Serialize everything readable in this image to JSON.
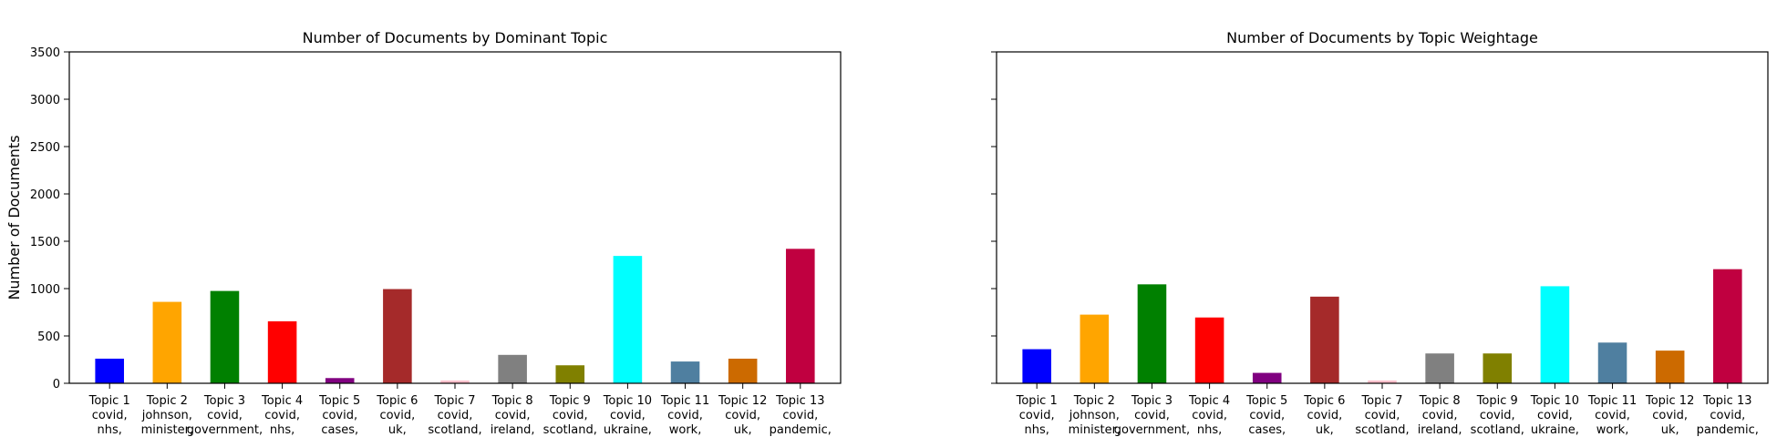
{
  "chart_data": [
    {
      "type": "bar",
      "title": "Number of Documents by Dominant Topic",
      "ylabel": "Number of Documents",
      "xlabel": "",
      "ylim": [
        0,
        3500
      ],
      "yticks": [
        0,
        500,
        1000,
        1500,
        2000,
        2500,
        3000,
        3500
      ],
      "show_ytick_labels": true,
      "categories": [
        [
          "Topic 1",
          "covid,",
          "nhs,"
        ],
        [
          "Topic 2",
          "johnson,",
          "minister,"
        ],
        [
          "Topic 3",
          "covid,",
          "government,"
        ],
        [
          "Topic 4",
          "covid,",
          "nhs,"
        ],
        [
          "Topic 5",
          "covid,",
          "cases,"
        ],
        [
          "Topic 6",
          "covid,",
          "uk,"
        ],
        [
          "Topic 7",
          "covid,",
          "scotland,"
        ],
        [
          "Topic 8",
          "covid,",
          "ireland,"
        ],
        [
          "Topic 9",
          "covid,",
          "scotland,"
        ],
        [
          "Topic 10",
          "covid,",
          "ukraine,"
        ],
        [
          "Topic 11",
          "covid,",
          "work,"
        ],
        [
          "Topic 12",
          "covid,",
          "uk,"
        ],
        [
          "Topic 13",
          "covid,",
          "pandemic,"
        ]
      ],
      "values": [
        260,
        860,
        975,
        655,
        55,
        995,
        30,
        300,
        190,
        1345,
        230,
        260,
        1420
      ],
      "colors": [
        "#0000ff",
        "#ffa500",
        "#008000",
        "#ff0000",
        "#800080",
        "#a52a2a",
        "#ffc0cb",
        "#808080",
        "#808000",
        "#00ffff",
        "#4f7fa0",
        "#cc6a00",
        "#c00040"
      ],
      "grid": false
    },
    {
      "type": "bar",
      "title": "Number of Documents by Topic Weightage",
      "ylabel": "",
      "xlabel": "",
      "ylim": [
        0,
        3500
      ],
      "yticks": [
        0,
        500,
        1000,
        1500,
        2000,
        2500,
        3000,
        3500
      ],
      "show_ytick_labels": false,
      "categories": [
        [
          "Topic 1",
          "covid,",
          "nhs,"
        ],
        [
          "Topic 2",
          "johnson,",
          "minister,"
        ],
        [
          "Topic 3",
          "covid,",
          "government,"
        ],
        [
          "Topic 4",
          "covid,",
          "nhs,"
        ],
        [
          "Topic 5",
          "covid,",
          "cases,"
        ],
        [
          "Topic 6",
          "covid,",
          "uk,"
        ],
        [
          "Topic 7",
          "covid,",
          "scotland,"
        ],
        [
          "Topic 8",
          "covid,",
          "ireland,"
        ],
        [
          "Topic 9",
          "covid,",
          "scotland,"
        ],
        [
          "Topic 10",
          "covid,",
          "ukraine,"
        ],
        [
          "Topic 11",
          "covid,",
          "work,"
        ],
        [
          "Topic 12",
          "covid,",
          "uk,"
        ],
        [
          "Topic 13",
          "covid,",
          "pandemic,"
        ]
      ],
      "values": [
        360,
        725,
        1045,
        695,
        110,
        915,
        30,
        315,
        315,
        1025,
        430,
        345,
        1205
      ],
      "colors": [
        "#0000ff",
        "#ffa500",
        "#008000",
        "#ff0000",
        "#800080",
        "#a52a2a",
        "#ffc0cb",
        "#808080",
        "#808000",
        "#00ffff",
        "#4f7fa0",
        "#cc6a00",
        "#c00040"
      ],
      "grid": false
    }
  ]
}
